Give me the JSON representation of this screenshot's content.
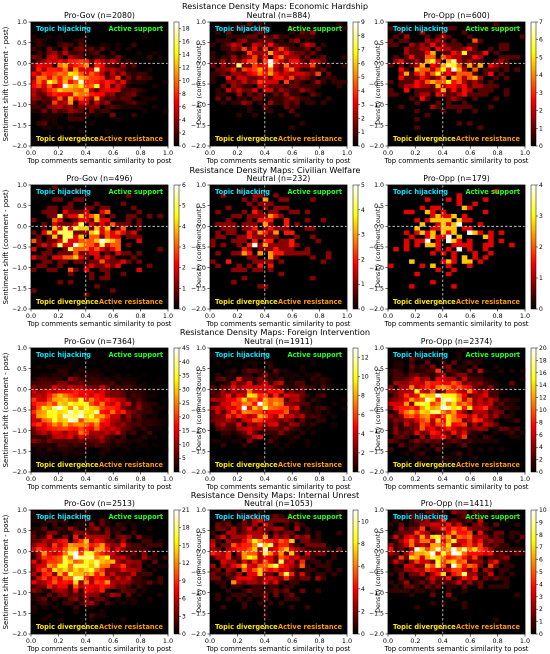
{
  "figure": {
    "xlabel": "Top comments semantic similarity to post",
    "ylabel": "Sentiment shift (comment - post)",
    "colorbar_label": "Density (comment count)",
    "quadrants": {
      "top_left": "Topic hijacking",
      "top_right": "Active support",
      "bottom_left": "Topic divergence",
      "bottom_right": "Active resistance"
    },
    "colors": {
      "topic_hijacking": "#00e5ff",
      "active_support": "#22ff22",
      "topic_divergence": "#ffe600",
      "active_resistance": "#ff9a00",
      "plot_background": "#000000",
      "guide_lines": "#dddddd"
    },
    "colormap": "hot",
    "x_ticks": [
      "0.0",
      "0.2",
      "0.4",
      "0.6",
      "0.8",
      "1.0"
    ],
    "y_ticks": [
      "1.0",
      "0.5",
      "0.0",
      "−0.5",
      "−1.0",
      "−1.5",
      "−2.0"
    ],
    "xlim": [
      0.0,
      1.0
    ],
    "ylim": [
      -2.0,
      1.0
    ],
    "x_guide": 0.4,
    "y_guide": 0.0
  },
  "chart_data": [
    {
      "type": "heatmap",
      "title": "Resistance Density Maps: Economic Hardship",
      "panels": [
        {
          "title": "Pro-Gov (n=2080)",
          "cbar_max": 19,
          "cbar_ticks": [
            0,
            2,
            4,
            6,
            8,
            10,
            12,
            14,
            16,
            18
          ],
          "center": [
            0.3,
            -0.45
          ],
          "spread": [
            0.22,
            0.4
          ]
        },
        {
          "title": "Neutral (n=884)",
          "cbar_max": 9,
          "cbar_ticks": [
            0,
            1,
            2,
            3,
            4,
            5,
            6,
            7,
            8,
            9
          ],
          "center": [
            0.42,
            -0.1
          ],
          "spread": [
            0.2,
            0.45
          ]
        },
        {
          "title": "Pro-Opp (n=600)",
          "cbar_max": 7,
          "cbar_ticks": [
            0,
            1,
            2,
            3,
            4,
            5,
            6,
            7
          ],
          "center": [
            0.4,
            -0.15
          ],
          "spread": [
            0.2,
            0.45
          ]
        }
      ]
    },
    {
      "type": "heatmap",
      "title": "Resistance Density Maps: Civilian Welfare",
      "panels": [
        {
          "title": "Pro-Gov (n=496)",
          "cbar_max": 6,
          "cbar_ticks": [
            0,
            1,
            2,
            3,
            4,
            5,
            6
          ],
          "center": [
            0.38,
            -0.3
          ],
          "spread": [
            0.2,
            0.45
          ]
        },
        {
          "title": "Neutral (n=232)",
          "cbar_max": 5,
          "cbar_ticks": [
            0,
            1,
            2,
            3,
            4,
            5
          ],
          "center": [
            0.4,
            -0.2
          ],
          "spread": [
            0.18,
            0.5
          ]
        },
        {
          "title": "Pro-Opp (n=179)",
          "cbar_max": 4,
          "cbar_ticks": [
            0,
            1,
            2,
            3,
            4
          ],
          "center": [
            0.45,
            -0.2
          ],
          "spread": [
            0.18,
            0.5
          ]
        }
      ]
    },
    {
      "type": "heatmap",
      "title": "Resistance Density Maps: Foreign Intervention",
      "panels": [
        {
          "title": "Pro-Gov (n=7364)",
          "cbar_max": 45,
          "cbar_ticks": [
            0,
            5,
            10,
            15,
            20,
            25,
            30,
            35,
            40,
            45
          ],
          "center": [
            0.3,
            -0.55
          ],
          "spread": [
            0.24,
            0.38
          ]
        },
        {
          "title": "Neutral (n=1911)",
          "cbar_max": 13,
          "cbar_ticks": [
            0,
            2,
            4,
            6,
            8,
            10,
            12
          ],
          "center": [
            0.35,
            -0.4
          ],
          "spread": [
            0.2,
            0.38
          ]
        },
        {
          "title": "Pro-Opp (n=2374)",
          "cbar_max": 20,
          "cbar_ticks": [
            0,
            2,
            4,
            6,
            8,
            10,
            12,
            14,
            16,
            18,
            20
          ],
          "center": [
            0.38,
            -0.4
          ],
          "spread": [
            0.22,
            0.45
          ]
        }
      ]
    },
    {
      "type": "heatmap",
      "title": "Resistance Density Maps: Internal Unrest",
      "panels": [
        {
          "title": "Pro-Gov (n=2513)",
          "cbar_max": 21,
          "cbar_ticks": [
            0,
            3,
            6,
            9,
            12,
            15,
            18,
            21
          ],
          "center": [
            0.35,
            -0.3
          ],
          "spread": [
            0.22,
            0.45
          ]
        },
        {
          "title": "Neutral (n=1053)",
          "cbar_max": 11,
          "cbar_ticks": [
            0,
            2,
            4,
            6,
            8,
            10
          ],
          "center": [
            0.38,
            -0.1
          ],
          "spread": [
            0.2,
            0.45
          ]
        },
        {
          "title": "Pro-Opp (n=1411)",
          "cbar_max": 10,
          "cbar_ticks": [
            0,
            1,
            2,
            3,
            4,
            5,
            6,
            7,
            8,
            9,
            10
          ],
          "center": [
            0.42,
            0.0
          ],
          "spread": [
            0.22,
            0.45
          ]
        }
      ]
    }
  ]
}
